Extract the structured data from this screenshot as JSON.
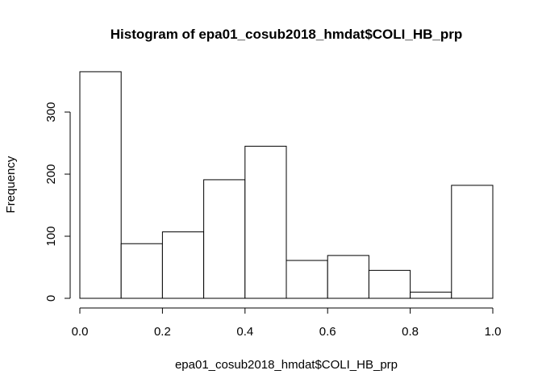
{
  "chart_data": {
    "type": "bar",
    "title": "Histogram of epa01_cosub2018_hmdat$COLI_HB_prp",
    "xlabel": "epa01_cosub2018_hmdat$COLI_HB_prp",
    "ylabel": "Frequency",
    "bins": [
      {
        "start": 0.0,
        "end": 0.1,
        "count": 365
      },
      {
        "start": 0.1,
        "end": 0.2,
        "count": 88
      },
      {
        "start": 0.2,
        "end": 0.3,
        "count": 107
      },
      {
        "start": 0.3,
        "end": 0.4,
        "count": 191
      },
      {
        "start": 0.4,
        "end": 0.5,
        "count": 245
      },
      {
        "start": 0.5,
        "end": 0.6,
        "count": 61
      },
      {
        "start": 0.6,
        "end": 0.7,
        "count": 69
      },
      {
        "start": 0.7,
        "end": 0.8,
        "count": 45
      },
      {
        "start": 0.8,
        "end": 0.9,
        "count": 10
      },
      {
        "start": 0.9,
        "end": 1.0,
        "count": 182
      }
    ],
    "xlim": [
      0.0,
      1.0
    ],
    "ylim": [
      0,
      365
    ],
    "xticks": [
      0.0,
      0.2,
      0.4,
      0.6,
      0.8,
      1.0
    ],
    "xtick_labels": [
      "0.0",
      "0.2",
      "0.4",
      "0.6",
      "0.8",
      "1.0"
    ],
    "yticks": [
      0,
      100,
      200,
      300
    ],
    "ytick_labels": [
      "0",
      "100",
      "200",
      "300"
    ],
    "grid": false,
    "bar_fill": "#ffffff",
    "bar_stroke": "#000000"
  }
}
